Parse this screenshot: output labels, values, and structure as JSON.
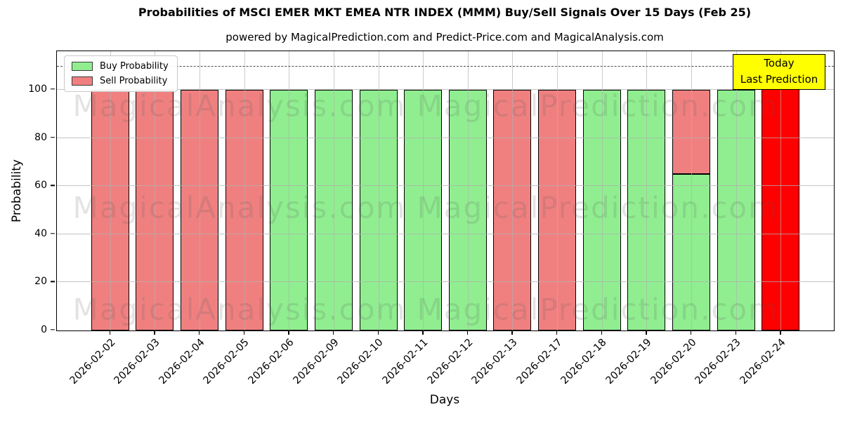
{
  "title": "Probabilities of MSCI EMER MKT EMEA NTR INDEX (MMM) Buy/Sell Signals Over 15 Days (Feb 25)",
  "subtitle": "powered by MagicalPrediction.com and Predict-Price.com and MagicalAnalysis.com",
  "axes": {
    "xlabel": "Days",
    "ylabel": "Probability",
    "yticks": [
      0,
      20,
      40,
      60,
      80,
      100
    ],
    "grid": true
  },
  "legend": {
    "items": [
      {
        "label": "Buy Probability",
        "color": "#90EE90"
      },
      {
        "label": "Sell Probability",
        "color": "#F08080"
      }
    ]
  },
  "annotation": {
    "line1": "Today",
    "line2": "Last Prediction",
    "bg": "#FFFF00",
    "border": "#000000"
  },
  "watermarks": [
    "MagicalAnalysis.com",
    "MagicalPrediction.com"
  ],
  "chart_data": {
    "type": "bar",
    "stacked": true,
    "title": "Probabilities of MSCI EMER MKT EMEA NTR INDEX (MMM) Buy/Sell Signals Over 15 Days (Feb 25)",
    "xlabel": "Days",
    "ylabel": "Probability",
    "ylim": [
      0,
      116
    ],
    "dashed_guide_y": 110,
    "grid": true,
    "legend_position": "upper left",
    "categories": [
      "2026-02-02",
      "2026-02-03",
      "2026-02-04",
      "2026-02-05",
      "2026-02-06",
      "2026-02-09",
      "2026-02-10",
      "2026-02-11",
      "2026-02-12",
      "2026-02-13",
      "2026-02-17",
      "2026-02-18",
      "2026-02-19",
      "2026-02-20",
      "2026-02-23",
      "2026-02-24"
    ],
    "series": [
      {
        "name": "Buy Probability",
        "color": "#90EE90",
        "values": [
          0,
          0,
          0,
          0,
          100,
          100,
          100,
          100,
          100,
          0,
          0,
          100,
          100,
          65,
          100,
          0
        ]
      },
      {
        "name": "Sell Probability",
        "color": "#F08080",
        "values": [
          100,
          100,
          100,
          100,
          0,
          0,
          0,
          0,
          0,
          100,
          100,
          0,
          0,
          35,
          0,
          0
        ]
      },
      {
        "name": "Last Prediction (Today)",
        "color": "#FF0000",
        "values": [
          0,
          0,
          0,
          0,
          0,
          0,
          0,
          0,
          0,
          0,
          0,
          0,
          0,
          0,
          0,
          110
        ]
      }
    ]
  }
}
